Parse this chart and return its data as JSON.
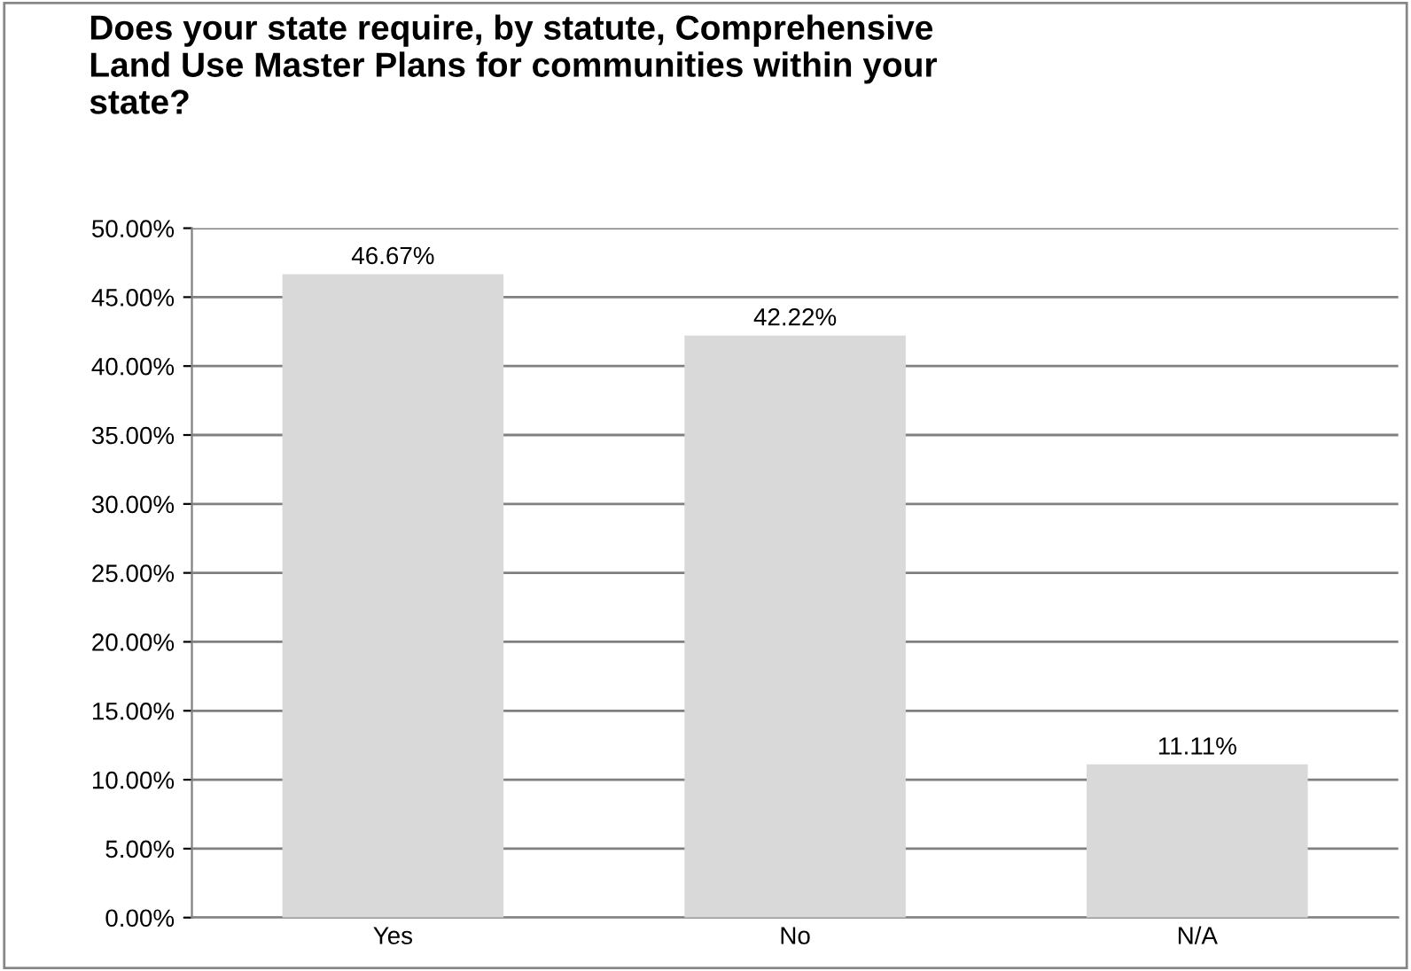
{
  "chart_data": {
    "type": "bar",
    "title": "Does your state require, by statute, Comprehensive\nLand Use Master Plans for communities within your\nstate?",
    "categories": [
      "Yes",
      "No",
      "N/A"
    ],
    "values": [
      46.67,
      42.22,
      11.11
    ],
    "value_labels": [
      "46.67%",
      "42.22%",
      "11.11%"
    ],
    "color": "#d9d9d9",
    "ylim": [
      0,
      50
    ],
    "yticks": [
      {
        "value": 0,
        "label": "0.00%"
      },
      {
        "value": 5,
        "label": "5.00%"
      },
      {
        "value": 10,
        "label": "10.00%"
      },
      {
        "value": 15,
        "label": "15.00%"
      },
      {
        "value": 20,
        "label": "20.00%"
      },
      {
        "value": 25,
        "label": "25.00%"
      },
      {
        "value": 30,
        "label": "30.00%"
      },
      {
        "value": 35,
        "label": "35.00%"
      },
      {
        "value": 40,
        "label": "40.00%"
      },
      {
        "value": 45,
        "label": "45.00%"
      },
      {
        "value": 50,
        "label": "50.00%"
      }
    ],
    "grid": "y"
  }
}
